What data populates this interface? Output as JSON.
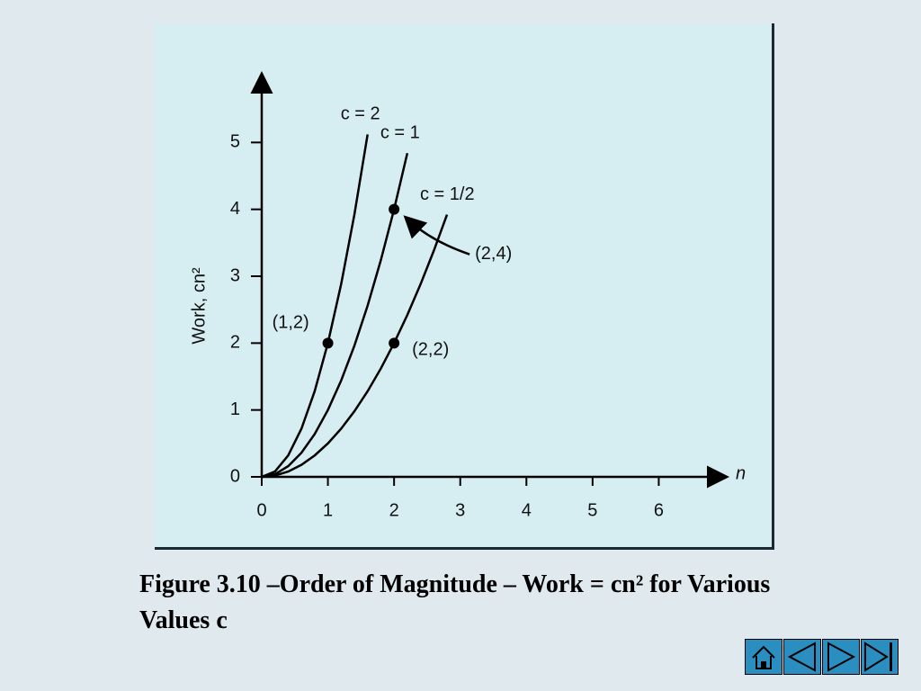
{
  "chart_data": {
    "type": "line",
    "x": [
      0,
      0.2,
      0.4,
      0.6,
      0.8,
      1,
      1.2,
      1.4,
      1.6,
      1.8,
      2,
      2.2,
      2.4,
      2.6,
      2.8
    ],
    "series": [
      {
        "name": "c = 2",
        "color": "#000000",
        "values": [
          0,
          0.08,
          0.32,
          0.72,
          1.28,
          2,
          2.88,
          3.92,
          5.12,
          null,
          null,
          null,
          null,
          null,
          null
        ]
      },
      {
        "name": "c = 1",
        "color": "#000000",
        "values": [
          0,
          0.04,
          0.16,
          0.36,
          0.64,
          1,
          1.44,
          1.96,
          2.56,
          3.24,
          4,
          4.84,
          null,
          null,
          null
        ]
      },
      {
        "name": "c = 1/2",
        "color": "#000000",
        "values": [
          0,
          0.02,
          0.08,
          0.18,
          0.32,
          0.5,
          0.72,
          0.98,
          1.28,
          1.62,
          2,
          2.42,
          2.88,
          3.38,
          3.92
        ]
      }
    ],
    "annotations": [
      {
        "text": "(1,2)",
        "x": 1,
        "y": 2
      },
      {
        "text": "(2,4)",
        "x": 2,
        "y": 4
      },
      {
        "text": "(2,2)",
        "x": 2,
        "y": 2
      }
    ],
    "xlabel": "n",
    "ylabel": "Work, cn²",
    "xlim": [
      0,
      7
    ],
    "ylim": [
      0,
      6
    ],
    "xticks": [
      0,
      1,
      2,
      3,
      4,
      5,
      6
    ],
    "yticks": [
      0,
      1,
      2,
      3,
      4,
      5
    ]
  },
  "caption": "Figure 3.10 –Order of Magnitude – Work = cn² for Various Values c"
}
